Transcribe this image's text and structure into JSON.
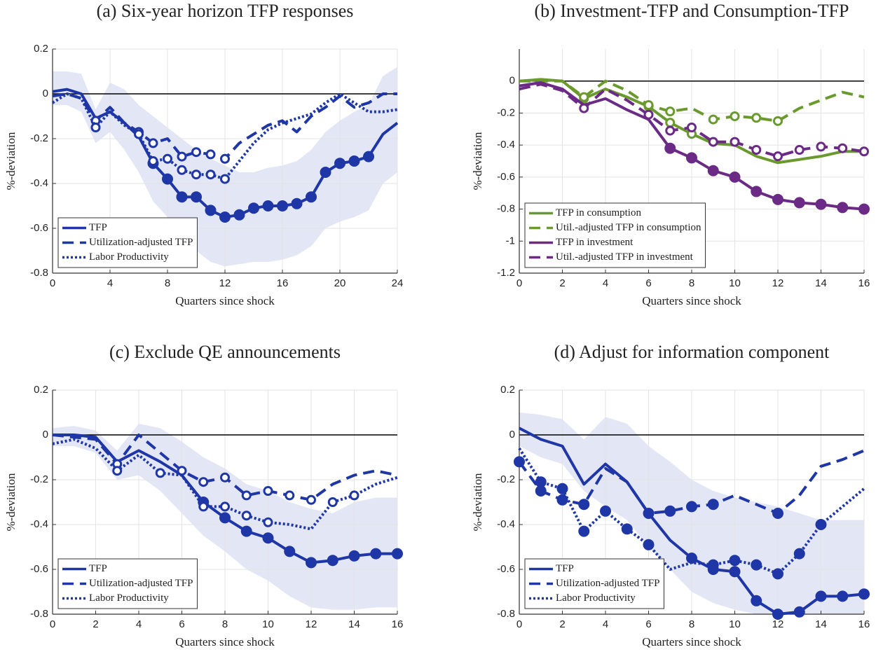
{
  "chart_data": [
    {
      "type": "line",
      "title": "(a) Six-year horizon TFP responses",
      "xlabel": "Quarters since shock",
      "ylabel": "%-deviation",
      "x": [
        0,
        1,
        2,
        3,
        4,
        5,
        6,
        7,
        8,
        9,
        10,
        11,
        12,
        13,
        14,
        15,
        16,
        17,
        18,
        19,
        20,
        21,
        22,
        23,
        24
      ],
      "xlim": [
        0,
        24
      ],
      "xticks": [
        0,
        4,
        8,
        12,
        16,
        20,
        24
      ],
      "ylim": [
        -0.8,
        0.2
      ],
      "yticks": [
        -0.8,
        -0.6,
        -0.4,
        -0.2,
        0,
        0.2
      ],
      "grid": true,
      "legend": "lower left",
      "band": {
        "color": "#e3e6f5",
        "upper": [
          0.1,
          0.1,
          0.09,
          -0.07,
          0.05,
          0.02,
          -0.05,
          -0.1,
          -0.15,
          -0.2,
          -0.25,
          -0.29,
          -0.32,
          -0.35,
          -0.35,
          -0.33,
          -0.32,
          -0.3,
          -0.25,
          -0.17,
          -0.12,
          -0.08,
          -0.05,
          0.08,
          0.12
        ],
        "lower": [
          -0.05,
          -0.05,
          -0.08,
          -0.22,
          -0.17,
          -0.25,
          -0.35,
          -0.48,
          -0.55,
          -0.65,
          -0.7,
          -0.75,
          -0.77,
          -0.76,
          -0.75,
          -0.75,
          -0.74,
          -0.72,
          -0.68,
          -0.6,
          -0.57,
          -0.55,
          -0.52,
          -0.4,
          -0.35
        ]
      },
      "series": [
        {
          "name": "TFP",
          "color": "#1f37a6",
          "dash": "solid",
          "marker": "filled",
          "values": [
            0.01,
            0.02,
            0,
            -0.11,
            -0.08,
            -0.13,
            -0.19,
            -0.31,
            -0.38,
            -0.46,
            -0.46,
            -0.52,
            -0.55,
            -0.54,
            -0.51,
            -0.5,
            -0.5,
            -0.49,
            -0.46,
            -0.35,
            -0.31,
            -0.3,
            -0.28,
            -0.18,
            -0.13
          ],
          "marked": [
            false,
            false,
            false,
            false,
            false,
            false,
            false,
            true,
            true,
            true,
            true,
            true,
            true,
            true,
            true,
            true,
            true,
            true,
            true,
            true,
            true,
            true,
            true,
            false,
            false
          ]
        },
        {
          "name": "Utilization-adjusted TFP",
          "color": "#1f37a6",
          "dash": "dashed",
          "marker": "open",
          "values": [
            -0.01,
            0,
            -0.02,
            -0.12,
            -0.06,
            -0.13,
            -0.17,
            -0.22,
            -0.2,
            -0.28,
            -0.26,
            -0.27,
            -0.29,
            -0.22,
            -0.18,
            -0.14,
            -0.12,
            -0.17,
            -0.1,
            -0.06,
            -0.01,
            -0.06,
            -0.04,
            0,
            0
          ],
          "marked": [
            false,
            false,
            false,
            true,
            false,
            false,
            true,
            true,
            false,
            true,
            true,
            true,
            true,
            false,
            false,
            false,
            false,
            false,
            false,
            false,
            false,
            false,
            false,
            false,
            false
          ]
        },
        {
          "name": "Labor Productivity",
          "color": "#1f37a6",
          "dash": "dotted",
          "marker": "open",
          "values": [
            -0.04,
            0,
            -0.02,
            -0.15,
            -0.08,
            -0.14,
            -0.18,
            -0.3,
            -0.29,
            -0.34,
            -0.36,
            -0.36,
            -0.38,
            -0.3,
            -0.22,
            -0.16,
            -0.13,
            -0.11,
            -0.09,
            -0.04,
            0,
            -0.04,
            -0.08,
            -0.08,
            -0.07
          ],
          "marked": [
            false,
            false,
            false,
            true,
            false,
            false,
            true,
            true,
            true,
            true,
            true,
            true,
            true,
            false,
            false,
            false,
            false,
            false,
            false,
            false,
            false,
            false,
            false,
            false,
            false
          ]
        }
      ]
    },
    {
      "type": "line",
      "title": "(b) Investment-TFP and Consumption-TFP",
      "xlabel": "Quarters since shock",
      "ylabel": "%-deviation",
      "x": [
        0,
        1,
        2,
        3,
        4,
        5,
        6,
        7,
        8,
        9,
        10,
        11,
        12,
        13,
        14,
        15,
        16
      ],
      "xlim": [
        0,
        16
      ],
      "xticks": [
        0,
        2,
        4,
        6,
        8,
        10,
        12,
        14,
        16
      ],
      "ylim": [
        -1.2,
        0.2
      ],
      "yticks": [
        -1.2,
        -1,
        -0.8,
        -0.6,
        -0.4,
        -0.2,
        0
      ],
      "grid": true,
      "legend": "lower left",
      "series": [
        {
          "name": "TFP in consumption",
          "color": "#6a9a2e",
          "dash": "solid",
          "marker": "open",
          "values": [
            0,
            0.01,
            0,
            -0.11,
            -0.05,
            -0.1,
            -0.16,
            -0.26,
            -0.33,
            -0.39,
            -0.4,
            -0.47,
            -0.51,
            -0.49,
            -0.47,
            -0.44,
            -0.44
          ],
          "marked": [
            false,
            false,
            false,
            true,
            false,
            false,
            true,
            true,
            true,
            false,
            false,
            false,
            false,
            false,
            false,
            false,
            false
          ]
        },
        {
          "name": "Util.-adjusted TFP in consumption",
          "color": "#6a9a2e",
          "dash": "dashed",
          "marker": "open",
          "values": [
            0,
            0,
            0,
            -0.1,
            0,
            -0.06,
            -0.15,
            -0.19,
            -0.17,
            -0.24,
            -0.22,
            -0.23,
            -0.25,
            -0.17,
            -0.12,
            -0.07,
            -0.1
          ],
          "marked": [
            false,
            false,
            false,
            true,
            false,
            false,
            true,
            true,
            false,
            true,
            true,
            true,
            true,
            false,
            false,
            false,
            false
          ]
        },
        {
          "name": "TFP in investment",
          "color": "#6b2a86",
          "dash": "solid",
          "marker": "filled",
          "values": [
            -0.03,
            -0.01,
            -0.05,
            -0.15,
            -0.11,
            -0.18,
            -0.24,
            -0.42,
            -0.48,
            -0.56,
            -0.6,
            -0.69,
            -0.74,
            -0.76,
            -0.77,
            -0.79,
            -0.8
          ],
          "marked": [
            false,
            false,
            false,
            false,
            false,
            false,
            false,
            true,
            true,
            true,
            true,
            true,
            true,
            true,
            true,
            true,
            true
          ]
        },
        {
          "name": "Util.-adjusted TFP in investment",
          "color": "#6b2a86",
          "dash": "dashed",
          "marker": "open",
          "values": [
            -0.05,
            -0.02,
            -0.06,
            -0.17,
            -0.05,
            -0.12,
            -0.21,
            -0.31,
            -0.29,
            -0.38,
            -0.38,
            -0.43,
            -0.47,
            -0.43,
            -0.41,
            -0.42,
            -0.44
          ],
          "marked": [
            false,
            false,
            false,
            true,
            false,
            false,
            true,
            true,
            true,
            true,
            true,
            true,
            true,
            true,
            true,
            true,
            true
          ]
        }
      ]
    },
    {
      "type": "line",
      "title": "(c) Exclude QE announcements",
      "xlabel": "Quarters since shock",
      "ylabel": "%-deviation",
      "x": [
        0,
        1,
        2,
        3,
        4,
        5,
        6,
        7,
        8,
        9,
        10,
        11,
        12,
        13,
        14,
        15,
        16
      ],
      "xlim": [
        0,
        16
      ],
      "xticks": [
        0,
        2,
        4,
        6,
        8,
        10,
        12,
        14,
        16
      ],
      "ylim": [
        -0.8,
        0.2
      ],
      "yticks": [
        -0.8,
        -0.6,
        -0.4,
        -0.2,
        0,
        0.2
      ],
      "grid": true,
      "legend": "lower left",
      "band": {
        "color": "#e3e6f5",
        "upper": [
          0.03,
          0.04,
          0.02,
          -0.07,
          0.05,
          0.03,
          -0.03,
          -0.1,
          -0.15,
          -0.22,
          -0.25,
          -0.3,
          -0.33,
          -0.35,
          -0.3,
          -0.28,
          -0.28
        ],
        "lower": [
          -0.05,
          -0.05,
          -0.08,
          -0.2,
          -0.18,
          -0.25,
          -0.35,
          -0.45,
          -0.52,
          -0.6,
          -0.65,
          -0.72,
          -0.77,
          -0.78,
          -0.78,
          -0.77,
          -0.77
        ]
      },
      "series": [
        {
          "name": "TFP",
          "color": "#1f37a6",
          "dash": "solid",
          "marker": "filled",
          "values": [
            0,
            0,
            -0.01,
            -0.12,
            -0.07,
            -0.12,
            -0.18,
            -0.3,
            -0.37,
            -0.43,
            -0.46,
            -0.52,
            -0.57,
            -0.56,
            -0.54,
            -0.53,
            -0.53
          ],
          "marked": [
            false,
            false,
            false,
            false,
            false,
            false,
            false,
            true,
            true,
            true,
            true,
            true,
            true,
            true,
            true,
            true,
            true
          ]
        },
        {
          "name": "Utilization-adjusted TFP",
          "color": "#1f37a6",
          "dash": "dashed",
          "marker": "open",
          "values": [
            0,
            -0.01,
            -0.02,
            -0.13,
            0,
            -0.08,
            -0.16,
            -0.21,
            -0.19,
            -0.27,
            -0.25,
            -0.27,
            -0.29,
            -0.22,
            -0.18,
            -0.16,
            -0.18
          ],
          "marked": [
            false,
            false,
            false,
            true,
            false,
            false,
            true,
            true,
            true,
            true,
            true,
            true,
            true,
            false,
            false,
            false,
            false
          ]
        },
        {
          "name": "Labor Productivity",
          "color": "#1f37a6",
          "dash": "dotted",
          "marker": "open",
          "values": [
            -0.04,
            -0.02,
            -0.06,
            -0.16,
            -0.09,
            -0.17,
            -0.18,
            -0.32,
            -0.32,
            -0.36,
            -0.39,
            -0.4,
            -0.42,
            -0.3,
            -0.27,
            -0.22,
            -0.19
          ],
          "marked": [
            false,
            false,
            false,
            true,
            false,
            true,
            false,
            true,
            true,
            true,
            true,
            false,
            false,
            true,
            true,
            false,
            false
          ]
        }
      ]
    },
    {
      "type": "line",
      "title": "(d) Adjust for information component",
      "xlabel": "Quarters since shock",
      "ylabel": "%-deviation",
      "x": [
        0,
        1,
        2,
        3,
        4,
        5,
        6,
        7,
        8,
        9,
        10,
        11,
        12,
        13,
        14,
        15,
        16
      ],
      "xlim": [
        0,
        16
      ],
      "xticks": [
        0,
        2,
        4,
        6,
        8,
        10,
        12,
        14,
        16
      ],
      "ylim": [
        -0.8,
        0.2
      ],
      "yticks": [
        -0.8,
        -0.6,
        -0.4,
        -0.2,
        0,
        0.2
      ],
      "grid": true,
      "legend": "lower left",
      "band": {
        "color": "#e3e6f5",
        "upper": [
          0.1,
          0.09,
          0.07,
          -0.02,
          0.08,
          0.05,
          -0.05,
          -0.12,
          -0.2,
          -0.25,
          -0.28,
          -0.3,
          -0.32,
          -0.35,
          -0.38,
          -0.38,
          -0.38
        ],
        "lower": [
          -0.05,
          -0.1,
          -0.13,
          -0.25,
          -0.32,
          -0.38,
          -0.5,
          -0.6,
          -0.7,
          -0.75,
          -0.78,
          -0.8,
          -0.8,
          -0.8,
          -0.8,
          -0.8,
          -0.8
        ]
      },
      "series": [
        {
          "name": "TFP",
          "color": "#1f37a6",
          "dash": "solid",
          "marker": "filled",
          "values": [
            0.03,
            -0.02,
            -0.05,
            -0.22,
            -0.13,
            -0.21,
            -0.35,
            -0.47,
            -0.55,
            -0.6,
            -0.61,
            -0.74,
            -0.8,
            -0.79,
            -0.72,
            -0.72,
            -0.71
          ],
          "marked": [
            false,
            false,
            false,
            false,
            false,
            false,
            false,
            false,
            true,
            true,
            true,
            true,
            true,
            true,
            true,
            true,
            true
          ]
        },
        {
          "name": "Utilization-adjusted TFP",
          "color": "#1f37a6",
          "dash": "dashed",
          "marker": "filled",
          "values": [
            -0.12,
            -0.25,
            -0.29,
            -0.31,
            -0.15,
            -0.21,
            -0.35,
            -0.34,
            -0.32,
            -0.31,
            -0.27,
            -0.31,
            -0.35,
            -0.27,
            -0.14,
            -0.11,
            -0.07
          ],
          "marked": [
            true,
            true,
            true,
            true,
            false,
            false,
            true,
            true,
            true,
            true,
            false,
            false,
            true,
            false,
            false,
            false,
            false
          ]
        },
        {
          "name": "Labor Productivity",
          "color": "#1f37a6",
          "dash": "dotted",
          "marker": "filled",
          "values": [
            -0.06,
            -0.21,
            -0.24,
            -0.43,
            -0.34,
            -0.42,
            -0.49,
            -0.6,
            -0.57,
            -0.58,
            -0.56,
            -0.58,
            -0.62,
            -0.53,
            -0.4,
            -0.32,
            -0.24
          ],
          "marked": [
            false,
            true,
            true,
            true,
            true,
            true,
            true,
            false,
            false,
            true,
            true,
            true,
            true,
            true,
            true,
            false,
            false
          ]
        }
      ]
    }
  ]
}
